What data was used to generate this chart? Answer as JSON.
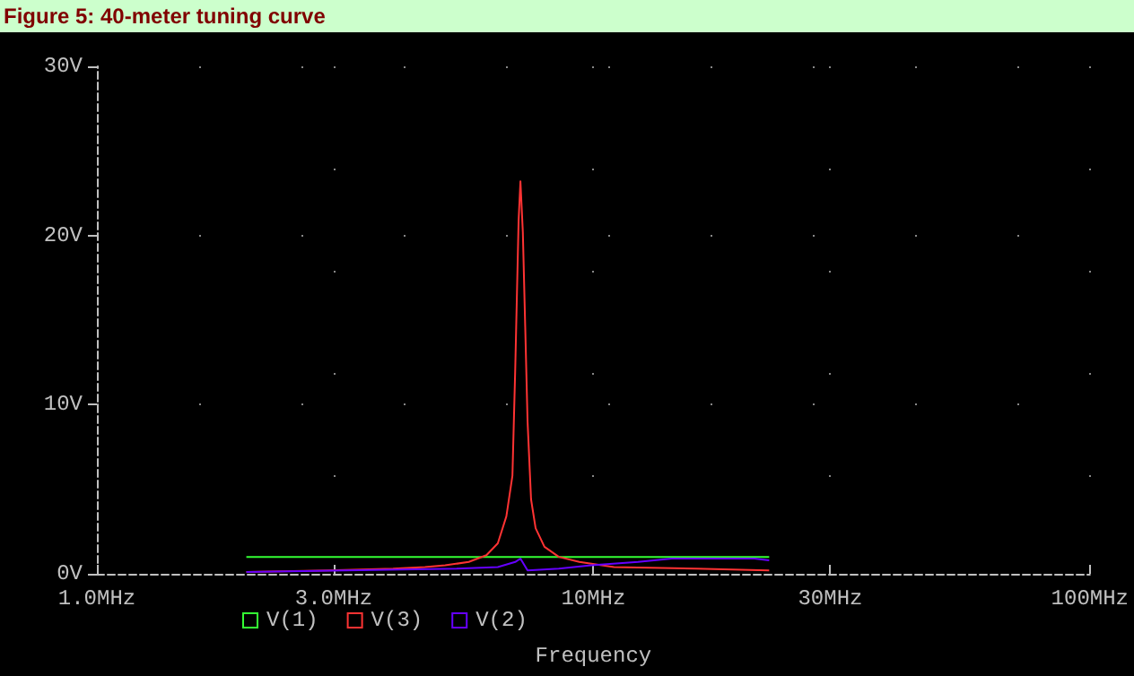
{
  "chart_data": {
    "type": "line",
    "title": "Figure 5: 40-meter tuning curve",
    "xlabel": "Frequency",
    "log": "x",
    "xlim": [
      1,
      100
    ],
    "xticks": [
      {
        "value": 1,
        "label": "1.0MHz"
      },
      {
        "value": 3,
        "label": "3.0MHz"
      },
      {
        "value": 10,
        "label": "10MHz"
      },
      {
        "value": 30,
        "label": "30MHz"
      },
      {
        "value": 100,
        "label": "100MHz"
      }
    ],
    "ylim": [
      0,
      30
    ],
    "yticks": [
      {
        "value": 0,
        "label": "0V"
      },
      {
        "value": 10,
        "label": "10V"
      },
      {
        "value": 20,
        "label": "20V"
      },
      {
        "value": 30,
        "label": "30V"
      }
    ],
    "grid": true,
    "legend": "bottom",
    "line_style": "solid",
    "series": [
      {
        "name": "V(1)",
        "color": "#33ff33",
        "x": [
          2.0,
          22.6
        ],
        "values": [
          1.0,
          1.0
        ]
      },
      {
        "name": "V(3)",
        "color": "#ff3333",
        "x": [
          2.0,
          2.92,
          3.95,
          4.58,
          5.03,
          5.61,
          6.09,
          6.42,
          6.68,
          6.87,
          6.96,
          7.07,
          7.13,
          7.21,
          7.29,
          7.37,
          7.49,
          7.65,
          7.97,
          8.52,
          9.37,
          11.0,
          16.1,
          22.6
        ],
        "values": [
          0.1,
          0.2,
          0.3,
          0.4,
          0.5,
          0.7,
          1.1,
          1.8,
          3.4,
          5.8,
          12.1,
          20.9,
          23.2,
          20.2,
          14.6,
          9.0,
          4.4,
          2.7,
          1.6,
          1.0,
          0.7,
          0.4,
          0.3,
          0.2
        ]
      },
      {
        "name": "V(2)",
        "color": "#6600ff",
        "x": [
          2.0,
          5.31,
          6.42,
          6.96,
          7.13,
          7.37,
          8.52,
          9.9,
          12.3,
          14.4,
          21.1,
          22.6
        ],
        "values": [
          0.1,
          0.3,
          0.4,
          0.7,
          0.9,
          0.2,
          0.3,
          0.5,
          0.7,
          0.9,
          0.9,
          0.8
        ]
      }
    ]
  }
}
